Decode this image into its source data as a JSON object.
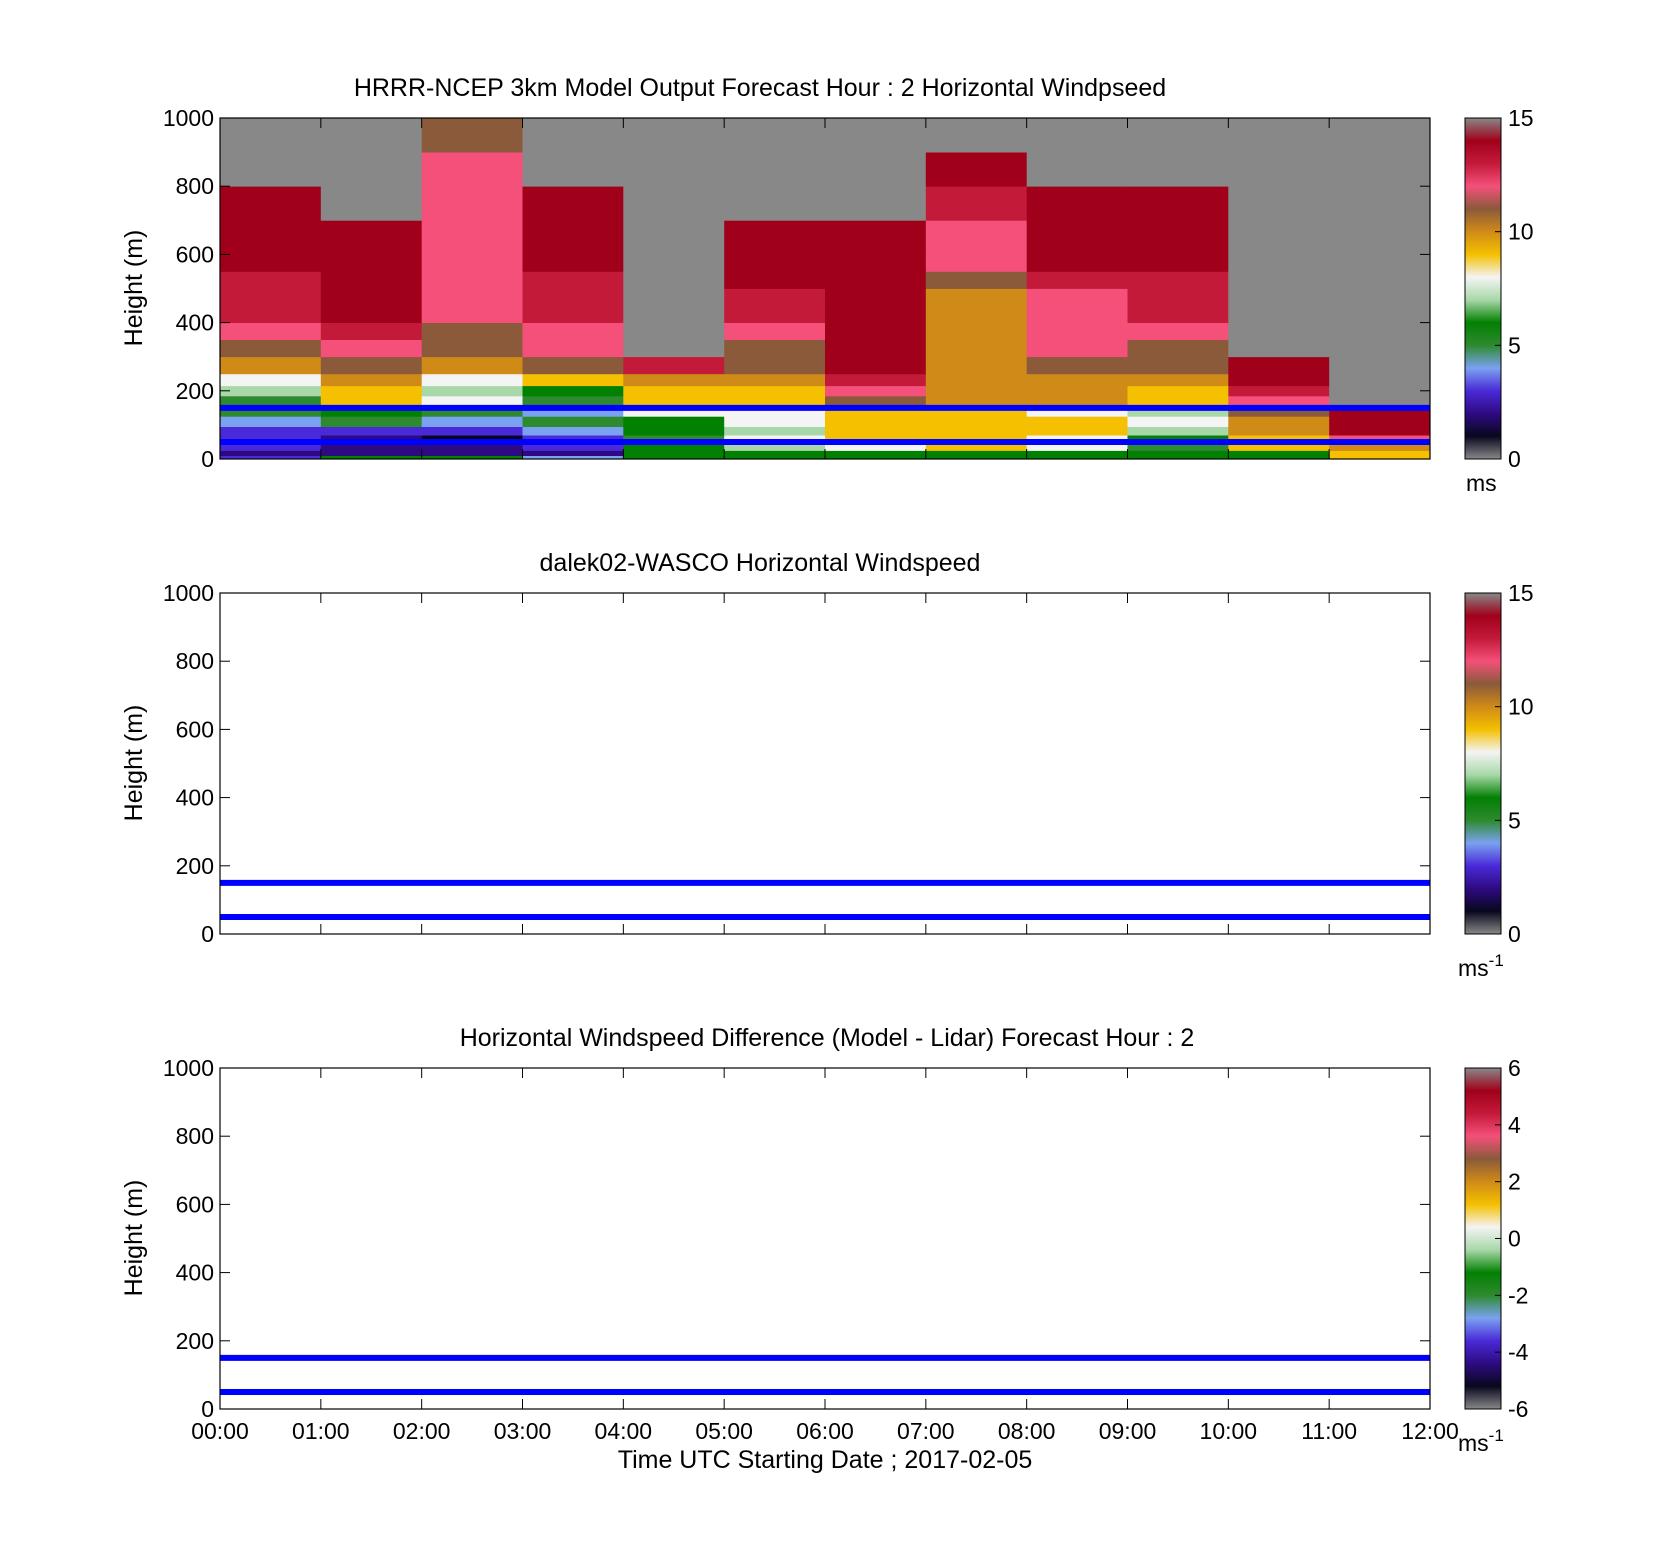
{
  "figure": {
    "xlabel": "Time UTC  Starting Date ; 2017-02-05",
    "xticks": [
      "00:00",
      "01:00",
      "02:00",
      "03:00",
      "04:00",
      "05:00",
      "06:00",
      "07:00",
      "08:00",
      "09:00",
      "10:00",
      "11:00",
      "12:00"
    ]
  },
  "colors": {
    "colormap_stops": [
      "#888888",
      "#08081e",
      "#2e0a82",
      "#4a2ad8",
      "#7aa2f0",
      "#2e8a2e",
      "#028002",
      "#a8d8a8",
      "#f4f4f4",
      "#f4c000",
      "#d08a18",
      "#8a5a3a",
      "#f4507a",
      "#c41a3a",
      "#a0001a",
      "#888888"
    ],
    "reference_lines": "#0000ff",
    "missing_or_no_data": "#ffffff"
  },
  "chart_data": [
    {
      "type": "heatmap",
      "title": "HRRR-NCEP 3km Model Output   Forecast Hour : 2 Horizontal Windpseed",
      "xlabel": "",
      "ylabel": "Height (m)",
      "xlim": [
        0,
        12
      ],
      "ylim": [
        0,
        1000
      ],
      "yticks": [
        "0",
        "200",
        "400",
        "600",
        "800",
        "1000"
      ],
      "colorbar": {
        "range": [
          0,
          15
        ],
        "ticks": [
          "0",
          "5",
          "10",
          "15"
        ],
        "unit": "ms"
      },
      "reference_lines_height": [
        50,
        150
      ],
      "x_hour_start": [
        0,
        1,
        2,
        3,
        4,
        5,
        6,
        7,
        8,
        9,
        10,
        11
      ],
      "y_levels": [
        0,
        10,
        25,
        45,
        70,
        95,
        125,
        155,
        185,
        215,
        250,
        300,
        350,
        400,
        450,
        500,
        550,
        600,
        700,
        800,
        900,
        1000
      ],
      "values": [
        [
          3,
          6,
          6,
          4,
          6,
          6,
          6,
          6,
          6,
          6,
          6,
          9
        ],
        [
          2,
          2,
          2,
          2,
          6,
          6,
          6,
          6,
          6,
          6,
          6,
          9
        ],
        [
          3,
          2,
          2,
          3,
          6,
          7,
          8,
          9,
          8,
          5,
          9,
          10
        ],
        [
          3,
          2,
          1,
          3,
          5,
          8,
          9,
          9,
          8,
          6,
          9,
          12
        ],
        [
          3,
          3,
          3,
          4,
          6,
          7,
          9,
          9,
          9,
          7,
          10,
          14
        ],
        [
          4,
          5,
          4,
          5,
          6,
          8,
          9,
          9,
          9,
          8,
          10,
          14
        ],
        [
          5,
          6,
          5,
          4,
          8,
          8,
          9,
          9,
          8,
          7,
          11,
          14
        ],
        [
          5,
          9,
          8,
          5,
          9,
          9,
          11,
          10,
          10,
          9,
          12,
          0
        ],
        [
          7,
          9,
          7,
          6,
          9,
          9,
          12,
          10,
          10,
          9,
          13,
          0
        ],
        [
          8,
          10,
          8,
          9,
          10,
          10,
          13,
          10,
          10,
          10,
          14,
          0
        ],
        [
          10,
          11,
          10,
          11,
          13,
          11,
          14,
          10,
          11,
          11,
          14,
          0
        ],
        [
          11,
          12,
          11,
          12,
          15,
          11,
          14,
          10,
          12,
          11,
          15,
          0
        ],
        [
          12,
          13,
          11,
          12,
          0,
          12,
          14,
          10,
          12,
          12,
          15,
          0
        ],
        [
          13,
          14,
          12,
          13,
          0,
          13,
          14,
          10,
          12,
          13,
          0,
          0
        ],
        [
          13,
          14,
          12,
          13,
          0,
          13,
          14,
          10,
          12,
          13,
          0,
          0
        ],
        [
          13,
          14,
          12,
          13,
          0,
          14,
          14,
          11,
          13,
          13,
          0,
          0
        ],
        [
          14,
          14,
          12,
          14,
          0,
          14,
          14,
          12,
          14,
          14,
          0,
          0
        ],
        [
          14,
          14,
          12,
          14,
          0,
          14,
          14,
          12,
          14,
          14,
          0,
          0
        ],
        [
          14,
          15,
          12,
          14,
          0,
          0,
          15,
          13,
          14,
          14,
          0,
          0
        ],
        [
          15,
          0,
          12,
          15,
          0,
          0,
          15,
          14,
          0,
          15,
          0,
          0
        ],
        [
          0,
          0,
          11,
          15,
          0,
          0,
          0,
          0,
          0,
          15,
          0,
          0
        ]
      ]
    },
    {
      "type": "heatmap",
      "title": "dalek02-WASCO  Horizontal Windspeed",
      "xlabel": "",
      "ylabel": "Height (m)",
      "xlim": [
        0,
        12
      ],
      "ylim": [
        0,
        1000
      ],
      "yticks": [
        "0",
        "200",
        "400",
        "600",
        "800",
        "1000"
      ],
      "colorbar": {
        "range": [
          0,
          15
        ],
        "ticks": [
          "0",
          "5",
          "10",
          "15"
        ],
        "unit": "ms-1"
      },
      "reference_lines_height": [
        50,
        150
      ]
    },
    {
      "type": "heatmap",
      "title": "Horizontal Windspeed Difference (Model - Lidar) Forecast Hour : 2",
      "xlabel": "Time UTC  Starting Date ; 2017-02-05",
      "ylabel": "Height (m)",
      "xlim": [
        0,
        12
      ],
      "ylim": [
        0,
        1000
      ],
      "yticks": [
        "0",
        "200",
        "400",
        "600",
        "800",
        "1000"
      ],
      "colorbar": {
        "range": [
          -6,
          6
        ],
        "ticks": [
          "-6",
          "-4",
          "-2",
          "0",
          "2",
          "4",
          "6"
        ],
        "unit": "ms-1"
      },
      "reference_lines_height": [
        50,
        150
      ]
    }
  ]
}
